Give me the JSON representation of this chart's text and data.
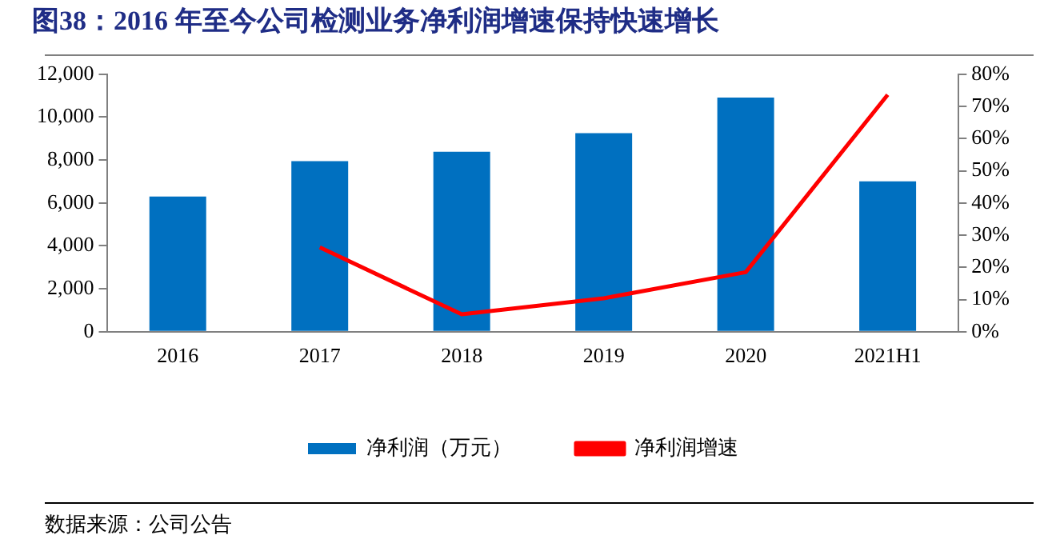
{
  "chart_data": {
    "type": "bar",
    "title": "图38：2016 年至今公司检测业务净利润增速保持快速增长",
    "categories": [
      "2016",
      "2017",
      "2018",
      "2019",
      "2020",
      "2021H1"
    ],
    "series": [
      {
        "name": "净利润（万元）",
        "color": "#0070c0",
        "values": [
          6300,
          7950,
          8390,
          9250,
          10910,
          7010
        ]
      },
      {
        "name": "净利润增速",
        "type": "line",
        "axis": "y2",
        "color": "#ff0000",
        "values": [
          null,
          26.2,
          5.4,
          10.4,
          18.5,
          73.6
        ]
      }
    ],
    "ylim": [
      0,
      12000
    ],
    "yticks": [
      0,
      {
        "value": 2000,
        "label": "2,000"
      },
      {
        "value": 4000,
        "label": "4,000"
      },
      {
        "value": 6000,
        "label": "6,000"
      },
      {
        "value": 8000,
        "label": "8,000"
      },
      {
        "value": 10000,
        "label": "10,000"
      },
      {
        "value": 12000,
        "label": "12,000"
      }
    ],
    "y2lim": [
      0,
      80
    ],
    "y2ticks": [
      {
        "value": 0,
        "label": "0%"
      },
      {
        "value": 10,
        "label": "10%"
      },
      {
        "value": 20,
        "label": "20%"
      },
      {
        "value": 30,
        "label": "30%"
      },
      {
        "value": 40,
        "label": "40%"
      },
      {
        "value": 50,
        "label": "50%"
      },
      {
        "value": 60,
        "label": "60%"
      },
      {
        "value": 70,
        "label": "70%"
      },
      {
        "value": 80,
        "label": "80%"
      }
    ],
    "grid": false,
    "legend": "bottom",
    "marker": "none",
    "annotations": [
      "数据来源：公司公告"
    ]
  }
}
